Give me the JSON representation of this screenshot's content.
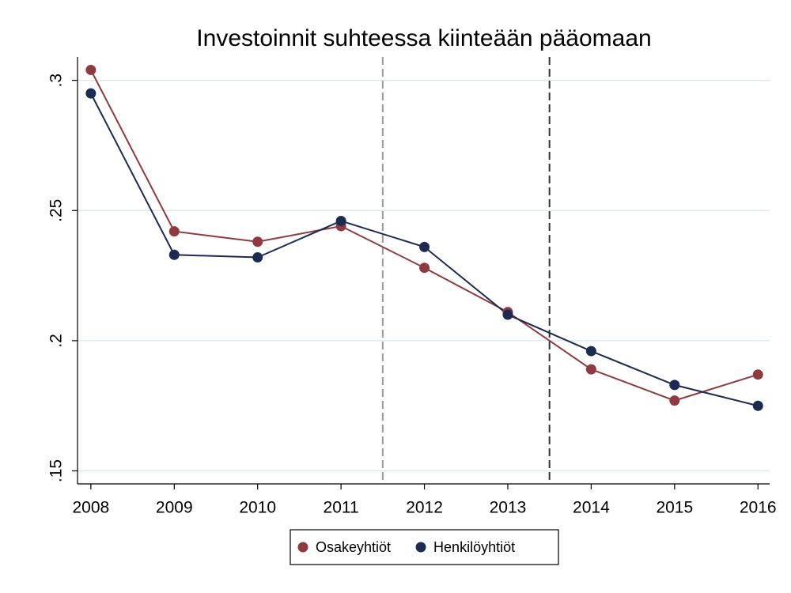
{
  "chart_data": {
    "type": "line",
    "title": "Investoinnit suhteessa kiinteään pääomaan",
    "x": [
      2008,
      2009,
      2010,
      2011,
      2012,
      2013,
      2014,
      2015,
      2016
    ],
    "series": [
      {
        "name": "Osakeyhtiöt",
        "color": "#903a40",
        "values": [
          0.304,
          0.242,
          0.238,
          0.244,
          0.228,
          0.211,
          0.189,
          0.177,
          0.187
        ]
      },
      {
        "name": "Henkilöyhtiöt",
        "color": "#1c2b52",
        "values": [
          0.295,
          0.233,
          0.232,
          0.246,
          0.236,
          0.21,
          0.196,
          0.183,
          0.175
        ]
      }
    ],
    "xlim": [
      2007.84,
      2016.14
    ],
    "xticks": [
      2008,
      2009,
      2010,
      2011,
      2012,
      2013,
      2014,
      2015,
      2016
    ],
    "ylim": [
      0.145,
      0.309
    ],
    "yticks": [
      {
        "value": 0.15,
        "label": ".15"
      },
      {
        "value": 0.2,
        "label": ".2"
      },
      {
        "value": 0.25,
        "label": ".25"
      },
      {
        "value": 0.3,
        "label": ".3"
      }
    ],
    "grid": true,
    "vlines": [
      {
        "x": 2011.5,
        "color": "#999999"
      },
      {
        "x": 2013.5,
        "color": "#333333"
      }
    ],
    "legend": "bottom"
  }
}
